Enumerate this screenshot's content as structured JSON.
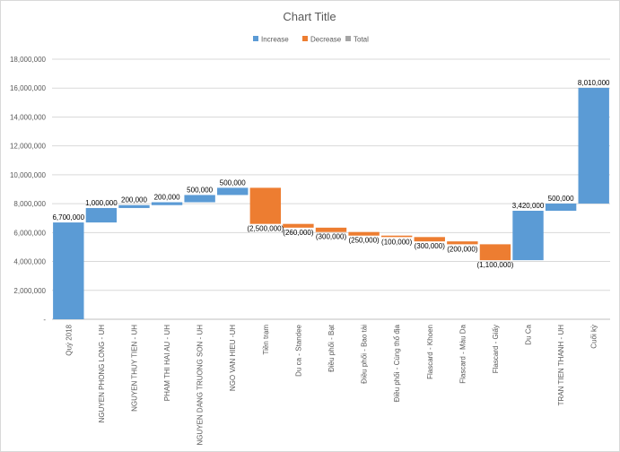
{
  "chart_data": {
    "type": "waterfall",
    "title": "Chart Title",
    "legend": {
      "position": "top",
      "items": [
        {
          "name": "Increase",
          "color": "#5b9bd5"
        },
        {
          "name": "Decrease",
          "color": "#ed7d31"
        },
        {
          "name": "Total",
          "color": "#a5a5a5"
        }
      ]
    },
    "ylim": [
      0,
      18000000
    ],
    "y_ticks": [
      "-",
      "2,000,000",
      "4,000,000",
      "6,000,000",
      "8,000,000",
      "10,000,000",
      "12,000,000",
      "14,000,000",
      "16,000,000",
      "18,000,000"
    ],
    "y_tick_values": [
      0,
      2000000,
      4000000,
      6000000,
      8000000,
      10000000,
      12000000,
      14000000,
      16000000,
      18000000
    ],
    "grid": true,
    "categories": [
      "Quý 2018",
      "NGUYEN PHONG LONG - UH",
      "NGUYEN THUY TIEN - UH",
      "PHAM THI HAI AU - UH",
      "NGUYEN DANG TRUONG SON - UH",
      "NGO VAN HIEU -UH",
      "Tiền trạm",
      "Du ca - Standee",
      "Điều phối - Bạt",
      "Điều phối - Bao tải",
      "Điều phối - Cúng thổ địa",
      "Flascard - Khoen",
      "Flascard - Màu Da",
      "Flascard - Giấy",
      "Du Ca",
      "TRAN TIEN THANH - UH",
      "Cuối kỳ"
    ],
    "points": [
      {
        "value": 6700000,
        "kind": "increase",
        "start": 0,
        "label": "6,700,000"
      },
      {
        "value": 1000000,
        "kind": "increase",
        "start": 6700000,
        "label": "1,000,000"
      },
      {
        "value": 200000,
        "kind": "increase",
        "start": 7700000,
        "label": "200,000"
      },
      {
        "value": 200000,
        "kind": "increase",
        "start": 7900000,
        "label": "200,000"
      },
      {
        "value": 500000,
        "kind": "increase",
        "start": 8100000,
        "label": "500,000"
      },
      {
        "value": 500000,
        "kind": "increase",
        "start": 8600000,
        "label": "500,000"
      },
      {
        "value": -2500000,
        "kind": "decrease",
        "start": 9100000,
        "label": "(2,500,000)"
      },
      {
        "value": -260000,
        "kind": "decrease",
        "start": 6600000,
        "label": "(260,000)"
      },
      {
        "value": -300000,
        "kind": "decrease",
        "start": 6340000,
        "label": "(300,000)"
      },
      {
        "value": -250000,
        "kind": "decrease",
        "start": 6040000,
        "label": "(250,000)"
      },
      {
        "value": -100000,
        "kind": "decrease",
        "start": 5790000,
        "label": "(100,000)"
      },
      {
        "value": -300000,
        "kind": "decrease",
        "start": 5690000,
        "label": "(300,000)"
      },
      {
        "value": -200000,
        "kind": "decrease",
        "start": 5390000,
        "label": "(200,000)"
      },
      {
        "value": -1100000,
        "kind": "decrease",
        "start": 5190000,
        "label": "(1,100,000)"
      },
      {
        "value": 3420000,
        "kind": "increase",
        "start": 4090000,
        "label": "3,420,000"
      },
      {
        "value": 500000,
        "kind": "increase",
        "start": 7510000,
        "label": "500,000"
      },
      {
        "value": 8010000,
        "kind": "increase",
        "start": 8010000,
        "label": "8,010,000"
      }
    ]
  }
}
